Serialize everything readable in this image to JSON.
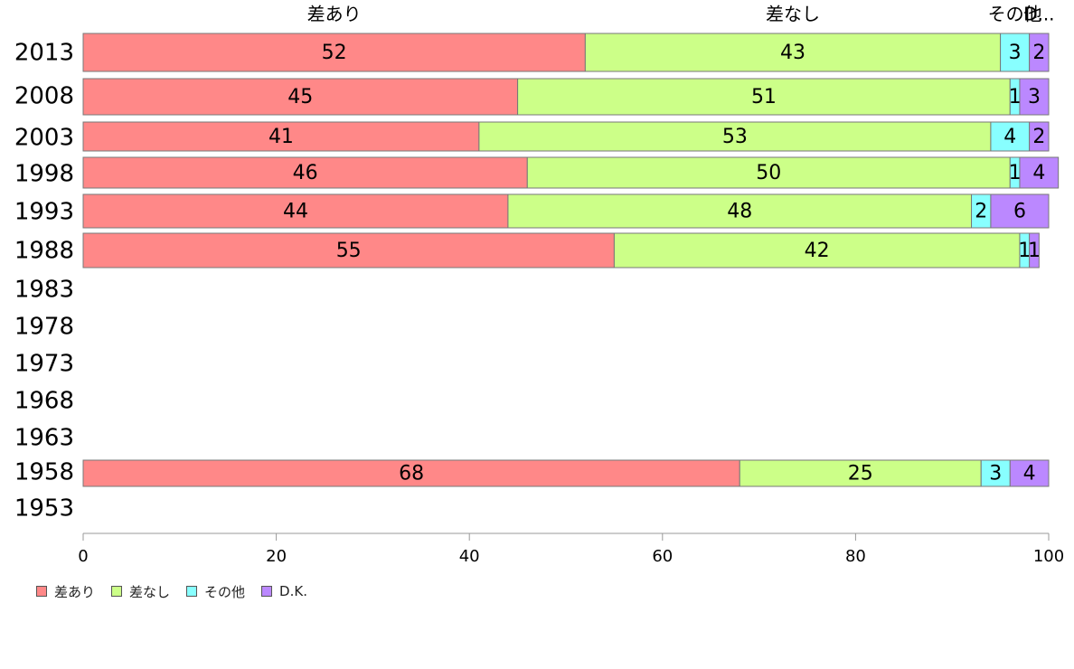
{
  "chart_data": {
    "type": "bar",
    "orientation": "horizontal",
    "stacked": true,
    "categories": [
      "2013",
      "2008",
      "2003",
      "1998",
      "1993",
      "1988",
      "1983",
      "1978",
      "1973",
      "1968",
      "1963",
      "1958",
      "1953"
    ],
    "series": [
      {
        "name": "差あり",
        "color": "#ff8888",
        "values": [
          52,
          45,
          41,
          46,
          44,
          55,
          null,
          null,
          null,
          null,
          null,
          68,
          null
        ]
      },
      {
        "name": "差なし",
        "color": "#ccff88",
        "values": [
          43,
          51,
          53,
          50,
          48,
          42,
          null,
          null,
          null,
          null,
          null,
          25,
          null
        ]
      },
      {
        "name": "その他",
        "color": "#88ffff",
        "values": [
          3,
          1,
          4,
          1,
          2,
          1,
          null,
          null,
          null,
          null,
          null,
          3,
          null
        ]
      },
      {
        "name": "D.K.",
        "color": "#bb88ff",
        "values": [
          2,
          3,
          2,
          4,
          6,
          1,
          null,
          null,
          null,
          null,
          null,
          4,
          null
        ]
      }
    ],
    "top_labels": [
      "差あり",
      "差なし",
      "その他",
      "D..."
    ],
    "xlim": [
      0,
      100
    ],
    "xticks": [
      0,
      20,
      40,
      60,
      80,
      100
    ],
    "grid": false,
    "legend_position": "bottom-left"
  }
}
